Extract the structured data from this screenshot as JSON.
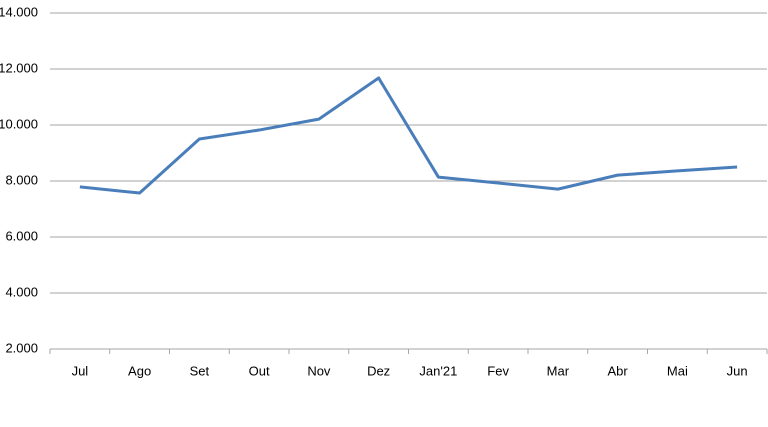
{
  "chart_data": {
    "type": "line",
    "categories": [
      "Jul",
      "Ago",
      "Set",
      "Out",
      "Nov",
      "Dez",
      "Jan'21",
      "Fev",
      "Mar",
      "Abr",
      "Mai",
      "Jun"
    ],
    "series": [
      {
        "color": "#4a7ebb",
        "values": [
          7790,
          7570,
          9500,
          9820,
          10210,
          11680,
          8140,
          7930,
          7710,
          8210,
          8360,
          8500
        ]
      }
    ],
    "ylim": [
      2000,
      14000
    ],
    "yticks": [
      {
        "value": 2000,
        "label": "2.000"
      },
      {
        "value": 4000,
        "label": "4.000"
      },
      {
        "value": 6000,
        "label": "6.000"
      },
      {
        "value": 8000,
        "label": "8.000"
      },
      {
        "value": 10000,
        "label": "10.000"
      },
      {
        "value": 12000,
        "label": "12.000"
      },
      {
        "value": 14000,
        "label": "14.000"
      }
    ],
    "grid": true
  }
}
